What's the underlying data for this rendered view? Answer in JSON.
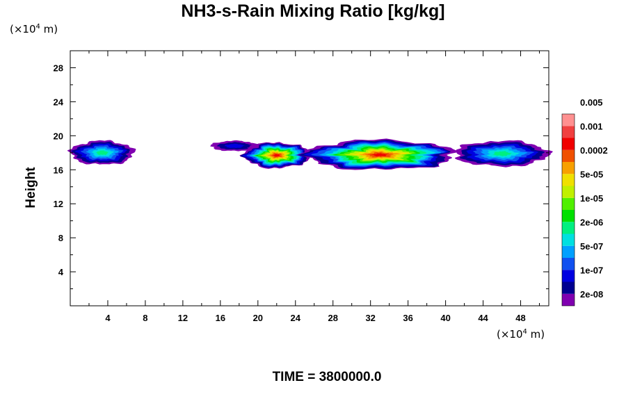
{
  "chart_data": {
    "type": "heatmap",
    "title": "NH3-s-Rain Mixing Ratio [kg/kg]",
    "ylabel": "Height",
    "xlabel": "",
    "x_unit": {
      "prefix": "(×10",
      "exp": "4",
      "suffix": " m)"
    },
    "y_unit": {
      "prefix": "(×10",
      "exp": "4",
      "suffix": " m)"
    },
    "xlim": [
      0,
      51
    ],
    "ylim": [
      0,
      30
    ],
    "x_ticks": [
      4,
      8,
      12,
      16,
      20,
      24,
      28,
      32,
      36,
      40,
      44,
      48
    ],
    "y_ticks": [
      4,
      8,
      12,
      16,
      20,
      24,
      28
    ],
    "colorbar": {
      "colors": [
        "#8000b0",
        "#000090",
        "#0000e0",
        "#1050f0",
        "#00a0ff",
        "#00e0e0",
        "#00f080",
        "#00e000",
        "#50f000",
        "#c0f000",
        "#f0e000",
        "#f8a000",
        "#f05000",
        "#f00000",
        "#f04040",
        "#ff9090"
      ],
      "labels": [
        "2e-08",
        "1e-07",
        "5e-07",
        "2e-06",
        "1e-05",
        "5e-05",
        "0.0002",
        "0.001",
        "0.005"
      ]
    },
    "regions": [
      {
        "x": [
          0,
          6.8
        ],
        "y": [
          16.6,
          19.4
        ],
        "peak_level": 6
      },
      {
        "x": [
          15,
          20
        ],
        "y": [
          18.2,
          19.4
        ],
        "peak_level": 2
      },
      {
        "x": [
          18.5,
          25.5
        ],
        "y": [
          16.2,
          19.2
        ],
        "peak_level": 13
      },
      {
        "x": [
          25,
          41
        ],
        "y": [
          16,
          19.5
        ],
        "peak_level": 13
      },
      {
        "x": [
          41,
          51
        ],
        "y": [
          16.4,
          19.4
        ],
        "peak_level": 6
      }
    ]
  },
  "bottom": {
    "time_label": "TIME = 3800000.0"
  }
}
